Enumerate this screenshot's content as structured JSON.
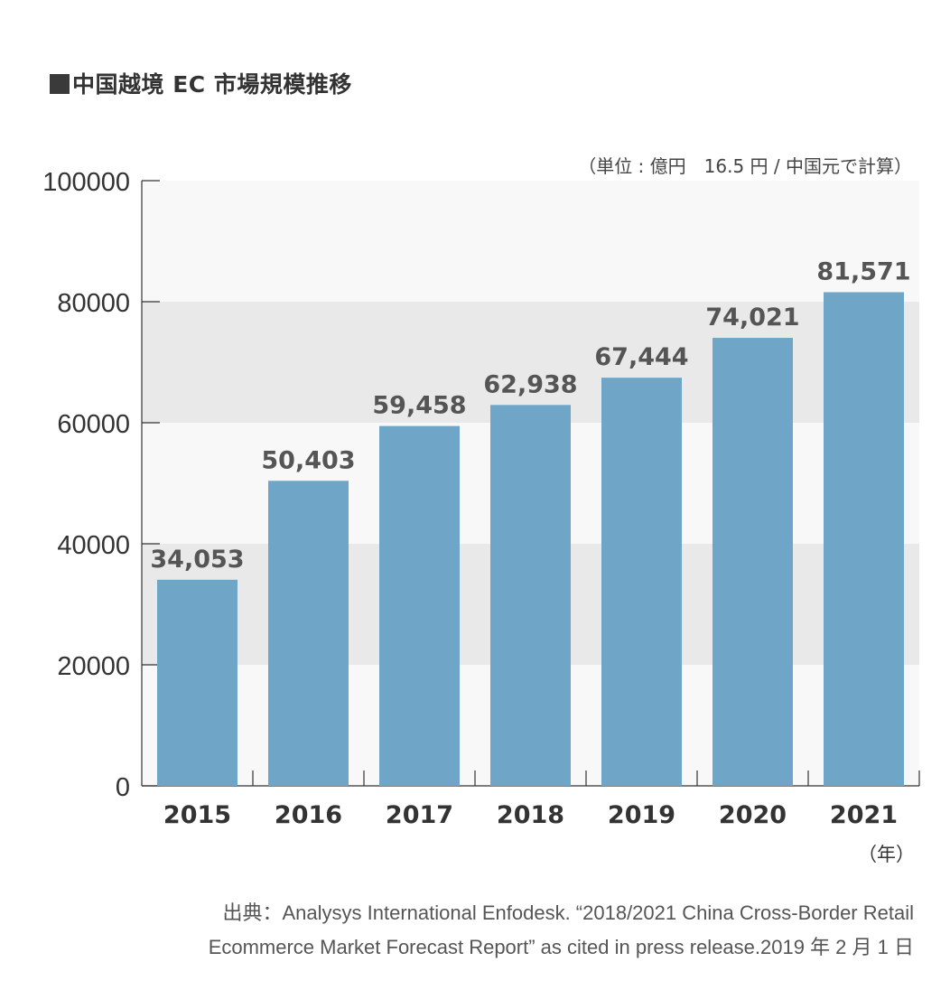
{
  "title": "■中国越境 EC 市場規模推移",
  "unit_note": "（単位 : 億円　16.5 円 / 中国元で計算）",
  "year_suffix": "（年）",
  "source_line1": "出典：Analysys International Enfodesk. “2018/2021 China Cross-Border Retail",
  "source_line2": "Ecommerce Market Forecast Report” as cited in press release.2019 年 2 月 1 日",
  "colors": {
    "bar": "#6fa5c6",
    "band_light": "#f8f8f8",
    "band_dark": "#e9e9e9",
    "axis": "#333333",
    "label": "#555555"
  },
  "chart_data": {
    "type": "bar",
    "categories": [
      "2015",
      "2016",
      "2017",
      "2018",
      "2019",
      "2020",
      "2021"
    ],
    "values": [
      34053,
      50403,
      59458,
      62938,
      67444,
      74021,
      81571
    ],
    "value_labels": [
      "34,053",
      "50,403",
      "59,458",
      "62,938",
      "67,444",
      "74,021",
      "81,571"
    ],
    "ylim": [
      0,
      100000
    ],
    "yticks": [
      "0",
      "20000",
      "40000",
      "60000",
      "80000",
      "100000"
    ],
    "ytick_values": [
      0,
      20000,
      40000,
      60000,
      80000,
      100000
    ],
    "grid": "alternating horizontal bands",
    "title": "■中国越境 EC 市場規模推移",
    "xlabel": "（年）",
    "ylabel": ""
  }
}
